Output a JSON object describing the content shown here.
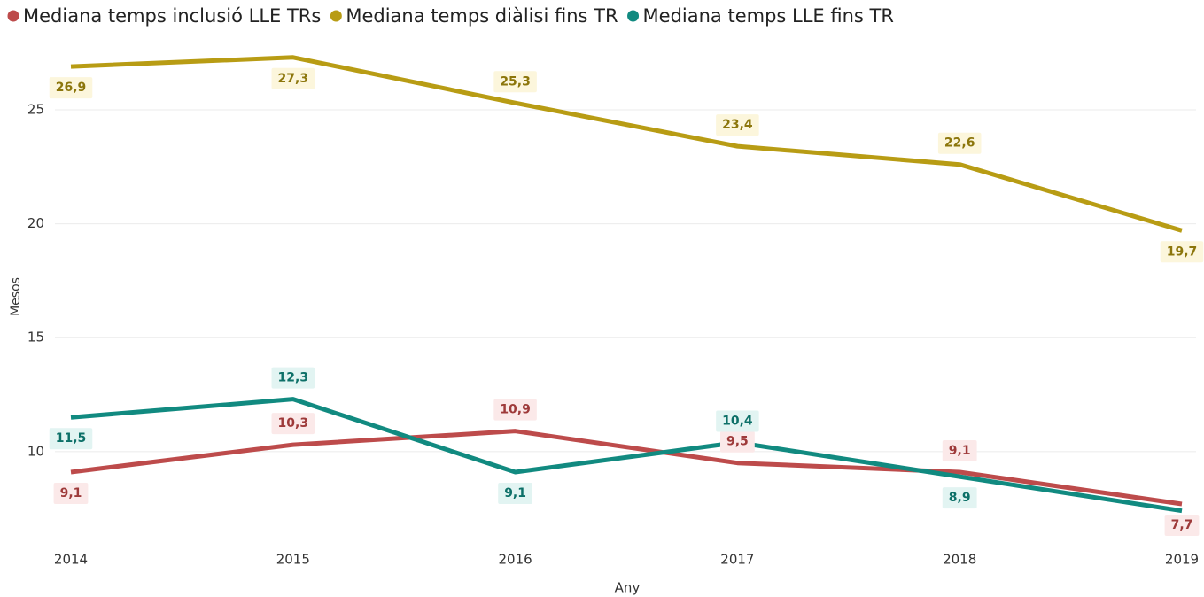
{
  "chart_data": {
    "type": "line",
    "x": [
      2014,
      2015,
      2016,
      2017,
      2018,
      2019
    ],
    "xlim": [
      2014,
      2019
    ],
    "xticks": [
      2014,
      2015,
      2016,
      2017,
      2018,
      2019
    ],
    "ylim": [
      7,
      28
    ],
    "yticks": [
      10,
      15,
      20,
      25
    ],
    "grid": true,
    "xlabel": "Any",
    "ylabel": "Mesos",
    "legend": "top",
    "series": [
      {
        "name": "Mediana temps inclusió LLE TRs",
        "color": "#bd4b4b",
        "values": [
          9.1,
          10.3,
          10.9,
          9.5,
          9.1,
          7.7
        ],
        "value_labels": [
          "9,1",
          "10,3",
          "10,9",
          "9,5",
          "9,1",
          "7,7"
        ]
      },
      {
        "name": "Mediana temps diàlisi fins TR",
        "color": "#b89c14",
        "values": [
          26.9,
          27.3,
          25.3,
          23.4,
          22.6,
          19.7
        ],
        "value_labels": [
          "26,9",
          "27,3",
          "25,3",
          "23,4",
          "22,6",
          "19,7"
        ]
      },
      {
        "name": "Mediana temps LLE fins TR",
        "color": "#118a80",
        "values": [
          11.5,
          12.3,
          9.1,
          10.4,
          8.9,
          7.4
        ],
        "value_labels": [
          "11,5",
          "12,3",
          "9,1",
          "10,4",
          "8,9",
          null
        ]
      }
    ]
  }
}
